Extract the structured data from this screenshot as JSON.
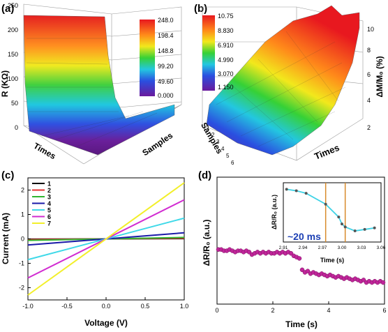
{
  "panels": {
    "a": {
      "label": "(a)"
    },
    "b": {
      "label": "(b)"
    },
    "c": {
      "label": "(c)"
    },
    "d": {
      "label": "(d)"
    }
  },
  "colors": {
    "line1": "#000000",
    "line2": "#e53030",
    "line3": "#2fb52f",
    "line4": "#1a1aa8",
    "line5": "#3fd9e8",
    "line6": "#d12bd1",
    "line7": "#f2ef2a",
    "dots": "#c0269a",
    "inset_line": "#3fd3e6",
    "marker_line": "#d88a2a",
    "annotation": "#1c3fb4"
  },
  "chart_data": [
    {
      "panel": "a",
      "type": "surface3d",
      "zlabel": "R (KΩ)",
      "xlabel": "Times",
      "ylabel": "Samples",
      "zlim": [
        0,
        250
      ],
      "zticks": [
        "0",
        "50",
        "100",
        "150",
        "200",
        "250"
      ],
      "colorbar_ticks": [
        "248.0",
        "198.4",
        "148.8",
        "99.20",
        "49.60",
        "0.000"
      ],
      "colorbar_range": [
        0,
        248
      ]
    },
    {
      "panel": "b",
      "type": "surface3d",
      "zlabel": "ΔM/M₀ (%)",
      "xlabel": "Times",
      "ylabel": "Samples",
      "zlim": [
        1,
        10.75
      ],
      "zticks": [
        "2",
        "4",
        "6",
        "8",
        "10"
      ],
      "yticks": [
        "1",
        "2",
        "3",
        "4",
        "5",
        "6"
      ],
      "colorbar_ticks": [
        "10.75",
        "8.830",
        "6.910",
        "4.990",
        "3.070",
        "1.150"
      ],
      "colorbar_range": [
        1.15,
        10.75
      ]
    },
    {
      "panel": "c",
      "type": "line",
      "xlabel": "Voltage (V)",
      "ylabel": "Current (mA)",
      "xlim": [
        -1.0,
        1.0
      ],
      "ylim": [
        -2.5,
        2.5
      ],
      "xticks": [
        "-1.0",
        "-0.5",
        "0.0",
        "0.5",
        "1.0"
      ],
      "yticks": [
        "-2",
        "-1",
        "0",
        "1",
        "2"
      ],
      "x": [
        -1.0,
        1.0
      ],
      "series": [
        {
          "name": "1",
          "values": [
            -0.01,
            0.01
          ]
        },
        {
          "name": "2",
          "values": [
            -0.03,
            0.03
          ]
        },
        {
          "name": "3",
          "values": [
            -0.06,
            0.06
          ]
        },
        {
          "name": "4",
          "values": [
            -0.25,
            0.25
          ]
        },
        {
          "name": "5",
          "values": [
            -0.85,
            0.85
          ]
        },
        {
          "name": "6",
          "values": [
            -1.6,
            1.6
          ]
        },
        {
          "name": "7",
          "values": [
            -2.3,
            2.3
          ]
        }
      ]
    },
    {
      "panel": "d",
      "type": "scatter",
      "xlabel": "Time (s)",
      "ylabel": "ΔR/R₀ (a.u.)",
      "xlim": [
        0,
        6
      ],
      "xticks": [
        "0",
        "2",
        "4",
        "6"
      ],
      "ylim": [
        0,
        1
      ],
      "x": [
        0.05,
        0.15,
        0.25,
        0.35,
        0.45,
        0.55,
        0.65,
        0.75,
        0.85,
        0.95,
        1.05,
        1.15,
        1.25,
        1.35,
        1.45,
        1.55,
        1.65,
        1.75,
        1.85,
        1.95,
        2.05,
        2.15,
        2.25,
        2.35,
        2.45,
        2.55,
        2.65,
        2.75,
        2.85,
        2.95,
        3.05,
        3.15,
        3.25,
        3.35,
        3.45,
        3.55,
        3.65,
        3.75,
        3.85,
        3.95,
        4.05,
        4.15,
        4.25,
        4.35,
        4.45,
        4.55,
        4.65,
        4.75,
        4.85,
        4.95,
        5.05,
        5.15,
        5.25,
        5.35,
        5.45,
        5.55,
        5.65,
        5.75,
        5.85,
        5.95
      ],
      "y": [
        0.43,
        0.43,
        0.42,
        0.42,
        0.43,
        0.42,
        0.41,
        0.42,
        0.42,
        0.41,
        0.42,
        0.41,
        0.39,
        0.4,
        0.41,
        0.4,
        0.41,
        0.4,
        0.41,
        0.4,
        0.4,
        0.41,
        0.4,
        0.41,
        0.4,
        0.41,
        0.4,
        0.38,
        0.37,
        0.36,
        0.27,
        0.25,
        0.26,
        0.24,
        0.25,
        0.24,
        0.23,
        0.24,
        0.23,
        0.22,
        0.23,
        0.22,
        0.21,
        0.22,
        0.21,
        0.2,
        0.21,
        0.2,
        0.19,
        0.2,
        0.19,
        0.18,
        0.19,
        0.17,
        0.18,
        0.17,
        0.18,
        0.17,
        0.18,
        0.17
      ],
      "inset": {
        "type": "line",
        "xlabel": "Time (s)",
        "ylabel": "ΔR/R₀ (a.u.)",
        "xlim": [
          2.91,
          3.06
        ],
        "xticks": [
          "2.91",
          "2.94",
          "2.97",
          "3.00",
          "3.03",
          "3.06"
        ],
        "x": [
          2.915,
          2.93,
          2.945,
          2.975,
          2.995,
          3.0,
          3.005,
          3.02,
          3.035,
          3.05
        ],
        "y": [
          0.98,
          0.95,
          0.9,
          0.68,
          0.42,
          0.28,
          0.22,
          0.14,
          0.17,
          0.2
        ],
        "markers_x": [
          2.975,
          3.005
        ],
        "annotation": "~20 ms"
      }
    }
  ]
}
